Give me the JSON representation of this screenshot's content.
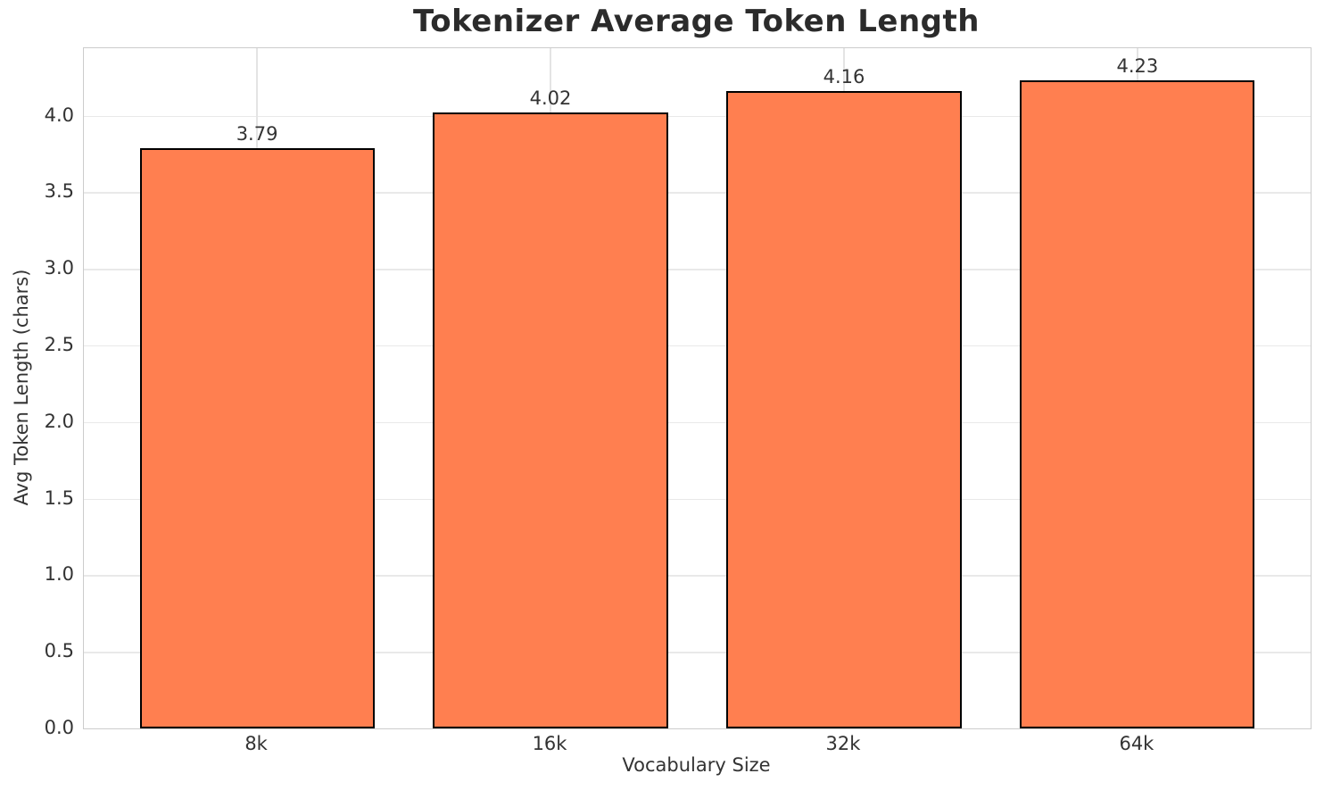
{
  "chart_data": {
    "type": "bar",
    "title": "Tokenizer Average Token Length",
    "xlabel": "Vocabulary Size",
    "ylabel": "Avg Token Length (chars)",
    "categories": [
      "8k",
      "16k",
      "32k",
      "64k"
    ],
    "values": [
      3.79,
      4.02,
      4.16,
      4.23
    ],
    "value_labels": [
      "3.79",
      "4.02",
      "4.16",
      "4.23"
    ],
    "ylim": [
      0,
      4.44
    ],
    "yticks": [
      0.0,
      0.5,
      1.0,
      1.5,
      2.0,
      2.5,
      3.0,
      3.5,
      4.0
    ],
    "ytick_labels": [
      "0.0",
      "0.5",
      "1.0",
      "1.5",
      "2.0",
      "2.5",
      "3.0",
      "3.5",
      "4.0"
    ],
    "bar_width_fraction": 0.8,
    "grid": true,
    "legend": null,
    "colors": {
      "bar_fill": "#ff7f50",
      "bar_edge": "#000000",
      "grid_line": "#e9e9e9",
      "spine": "#cccccc",
      "text": "#333333",
      "title": "#2b2b2b",
      "background": "#ffffff"
    }
  }
}
